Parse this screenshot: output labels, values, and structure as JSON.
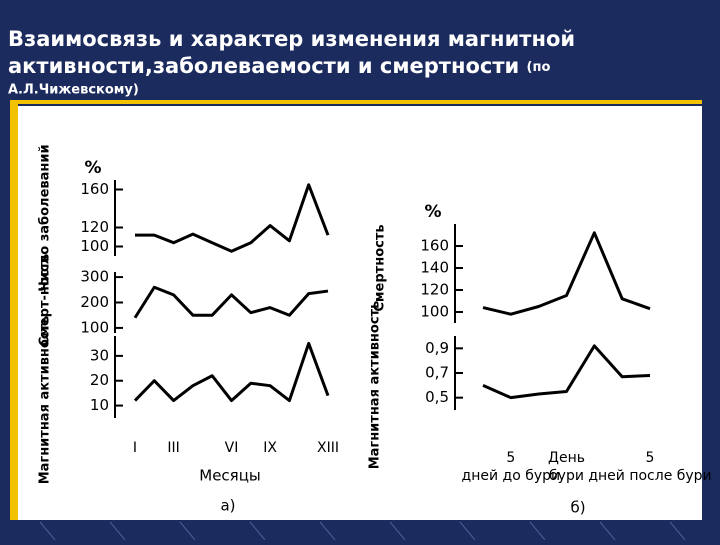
{
  "title": "Взаимосвязь и характер изменения магнитной активности,заболеваемости и смертности",
  "title_note": "(по А.Л.Чижевскому)",
  "chart_data": [
    {
      "type": "line",
      "ylabel": "Число заболеваний",
      "unit": "%",
      "values": [
        112,
        112,
        104,
        113,
        104,
        95,
        104,
        122,
        106,
        165,
        112
      ],
      "ylim": [
        90,
        170
      ],
      "yticks": [
        100,
        120,
        160
      ],
      "color": "#000000"
    },
    {
      "type": "line",
      "ylabel": "Смерт-ность",
      "values": [
        140,
        260,
        230,
        150,
        150,
        230,
        160,
        180,
        150,
        235,
        245
      ],
      "ylim": [
        80,
        320
      ],
      "yticks": [
        100,
        200,
        300
      ],
      "color": "#000000"
    },
    {
      "type": "line",
      "ylabel": "Магнитная активность",
      "categories": [
        "I",
        null,
        "III",
        null,
        null,
        "VI",
        null,
        "IX",
        null,
        null,
        "XIII"
      ],
      "values": [
        12,
        20,
        12,
        18,
        22,
        12,
        19,
        18,
        12,
        35,
        14
      ],
      "ylim": [
        5,
        38
      ],
      "yticks": [
        10,
        20,
        30
      ],
      "xlabel": "Месяцы",
      "caption": "а)",
      "color": "#000000"
    },
    {
      "type": "line",
      "ylabel": "Смертность",
      "unit": "%",
      "values": [
        104,
        98,
        105,
        115,
        172,
        112,
        103
      ],
      "ylim": [
        90,
        180
      ],
      "yticks": [
        100,
        120,
        140,
        160
      ],
      "color": "#000000"
    },
    {
      "type": "line",
      "ylabel": "Магнитная активность",
      "categories": [
        null,
        "5 дней до бури",
        null,
        "День бури",
        null,
        null,
        "5 дней после бури"
      ],
      "values": [
        0.6,
        0.5,
        0.53,
        0.55,
        0.92,
        0.67,
        0.68
      ],
      "ylim": [
        0.4,
        1.0
      ],
      "yticks": [
        {
          "value": 0.5,
          "label": "0,5"
        },
        {
          "value": 0.7,
          "label": "0,7"
        },
        {
          "value": 0.9,
          "label": "0,9"
        }
      ],
      "caption": "б)",
      "color": "#000000"
    }
  ]
}
